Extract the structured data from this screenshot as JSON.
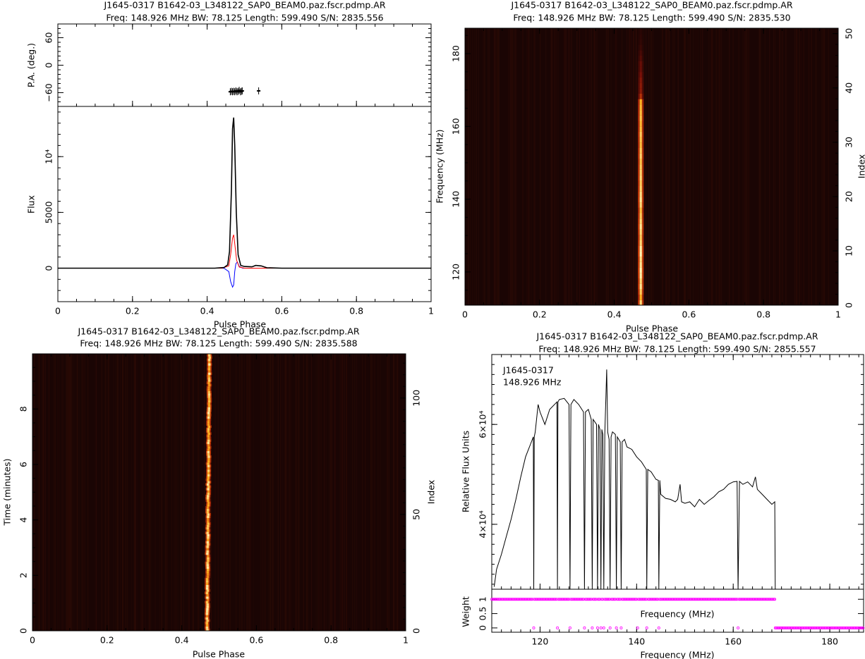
{
  "figure": {
    "background": "#ffffff",
    "axis_color": "#000000"
  },
  "panels": {
    "profile": {
      "title_line1": "J1645-0317 B1642-03_L348122_SAP0_BEAM0.paz.fscr.pdmp.AR",
      "title_line2": "Freq: 148.926 MHz BW: 78.125 Length: 599.490 S/N: 2835.556"
    },
    "freq_phase": {
      "title_line1": "J1645-0317 B1642-03_L348122_SAP0_BEAM0.paz.fscr.pdmp.AR",
      "title_line2": "Freq: 148.926 MHz BW: 78.125 Length: 599.490 S/N: 2835.530"
    },
    "time_phase": {
      "title_line1": "J1645-0317 B1642-03_L348122_SAP0_BEAM0.paz.fscr.pdmp.AR",
      "title_line2": "Freq: 148.926 MHz BW: 78.125 Length: 599.490 S/N: 2835.588"
    },
    "bandpass": {
      "title_line1": "J1645-0317 B1642-03_L348122_SAP0_BEAM0.paz.fscr.pdmp.AR",
      "title_line2": "Freq: 148.926 MHz BW: 78.125 Length: 599.490 S/N: 2855.557",
      "annotation_line1": "J1645-0317",
      "annotation_line2": "148.926 MHz"
    }
  },
  "chart_data": [
    {
      "id": "pa",
      "type": "scatter",
      "ylabel": "P.A. (deg.)",
      "xlim": [
        0,
        1
      ],
      "ylim": [
        -90,
        90
      ],
      "yticks": [
        -60,
        0,
        60
      ],
      "ytick_labels": [
        "−60",
        "0",
        "60"
      ],
      "color": "#000000",
      "points": [
        [
          0.462,
          -58
        ],
        [
          0.465,
          -57
        ],
        [
          0.468,
          -58
        ],
        [
          0.471,
          -57
        ],
        [
          0.474,
          -58
        ],
        [
          0.477,
          -56
        ],
        [
          0.48,
          -58
        ],
        [
          0.483,
          -57
        ],
        [
          0.486,
          -55
        ],
        [
          0.489,
          -58
        ],
        [
          0.492,
          -57
        ],
        [
          0.494,
          -56
        ],
        [
          0.538,
          -56
        ]
      ]
    },
    {
      "id": "flux",
      "type": "line",
      "xlabel": "Pulse Phase",
      "ylabel": "Flux",
      "xlim": [
        0,
        1
      ],
      "ylim": [
        -3000,
        14500
      ],
      "xticks": [
        0,
        0.2,
        0.4,
        0.6,
        0.8,
        1
      ],
      "xtick_labels": [
        "0",
        "0.2",
        "0.4",
        "0.6",
        "0.8",
        "1"
      ],
      "yticks": [
        0,
        5000,
        10000
      ],
      "ytick_labels": [
        "0",
        "5000",
        "10⁴"
      ],
      "series": [
        {
          "color": "#000000",
          "points": [
            [
              0,
              0
            ],
            [
              0.42,
              0
            ],
            [
              0.445,
              60
            ],
            [
              0.455,
              300
            ],
            [
              0.46,
              1500
            ],
            [
              0.465,
              7000
            ],
            [
              0.468,
              12500
            ],
            [
              0.471,
              13500
            ],
            [
              0.474,
              11000
            ],
            [
              0.478,
              5000
            ],
            [
              0.483,
              1200
            ],
            [
              0.49,
              250
            ],
            [
              0.5,
              150
            ],
            [
              0.52,
              120
            ],
            [
              0.53,
              250
            ],
            [
              0.545,
              200
            ],
            [
              0.56,
              40
            ],
            [
              0.6,
              0
            ],
            [
              1,
              0
            ]
          ]
        },
        {
          "color": "#ff0000",
          "points": [
            [
              0,
              0
            ],
            [
              0.44,
              0
            ],
            [
              0.458,
              200
            ],
            [
              0.463,
              1200
            ],
            [
              0.468,
              2700
            ],
            [
              0.471,
              3000
            ],
            [
              0.474,
              2200
            ],
            [
              0.479,
              700
            ],
            [
              0.486,
              100
            ],
            [
              0.5,
              0
            ],
            [
              1,
              0
            ]
          ]
        },
        {
          "color": "#0000ff",
          "points": [
            [
              0,
              0
            ],
            [
              0.445,
              0
            ],
            [
              0.458,
              -300
            ],
            [
              0.463,
              -1200
            ],
            [
              0.468,
              -1700
            ],
            [
              0.471,
              -1500
            ],
            [
              0.474,
              -300
            ],
            [
              0.477,
              400
            ],
            [
              0.481,
              550
            ],
            [
              0.486,
              150
            ],
            [
              0.495,
              0
            ],
            [
              1,
              0
            ]
          ]
        }
      ]
    },
    {
      "id": "freq_phase",
      "type": "heatmap",
      "xlabel": "Pulse Phase",
      "ylabel": "Frequency (MHz)",
      "ylabel_right": "Index",
      "xlim": [
        0,
        1
      ],
      "ylim": [
        110.86,
        186.99
      ],
      "ylim_right": [
        0,
        51
      ],
      "xticks": [
        0,
        0.2,
        0.4,
        0.6,
        0.8,
        1
      ],
      "xtick_labels": [
        "0",
        "0.2",
        "0.4",
        "0.6",
        "0.8",
        "1"
      ],
      "yticks": [
        120,
        140,
        160,
        180
      ],
      "ytick_labels": [
        "120",
        "140",
        "160",
        "180"
      ],
      "yticks_right": [
        0,
        10,
        20,
        30,
        40,
        50
      ],
      "ytick_labels_right": [
        "0",
        "10",
        "20",
        "30",
        "40",
        "50"
      ],
      "colormap": [
        "#1a0504",
        "#7a1008",
        "#d8480a",
        "#ffb020",
        "#fff2b0"
      ],
      "background_color": "#1a0504",
      "pulse_phase": 0.471,
      "pulse_width": 0.012,
      "channel_intensity": [
        0.9,
        0.75,
        0.85,
        0.95,
        0.9,
        0.98,
        1,
        0.95,
        0.92,
        1,
        0.98,
        0.9,
        0.85,
        0.9,
        0.95,
        0.9,
        0.85,
        0.8,
        0.9,
        0.95,
        0.92,
        0.88,
        0.85,
        0.9,
        0.88,
        0.85,
        0.82,
        0.88,
        0.85,
        0.8,
        0.82,
        0.85,
        0.8,
        0.78,
        0.82,
        0.8,
        0.78,
        0.75,
        0.4,
        0.3,
        0.3,
        0.28,
        0.25,
        0.2,
        0.2,
        0.15,
        0.12,
        0.08,
        0.06,
        0.05,
        0.04
      ]
    },
    {
      "id": "time_phase",
      "type": "heatmap",
      "xlabel": "Pulse Phase",
      "ylabel": "Time (minutes)",
      "ylabel_right": "Index",
      "xlim": [
        0,
        1
      ],
      "ylim": [
        0,
        9.99
      ],
      "ylim_right": [
        0,
        119
      ],
      "xticks": [
        0,
        0.2,
        0.4,
        0.6,
        0.8,
        1
      ],
      "xtick_labels": [
        "0",
        "0.2",
        "0.4",
        "0.6",
        "0.8",
        "1"
      ],
      "yticks": [
        0,
        2,
        4,
        6,
        8
      ],
      "ytick_labels": [
        "0",
        "2",
        "4",
        "6",
        "8"
      ],
      "yticks_right": [
        0,
        50,
        100
      ],
      "ytick_labels_right": [
        "0",
        "50",
        "100"
      ],
      "colormap": [
        "#1a0504",
        "#7a1008",
        "#d8480a",
        "#ffb020",
        "#fff2b0"
      ],
      "background_color": "#1a0504",
      "pulse_phase_start": 0.468,
      "pulse_phase_end": 0.474,
      "pulse_width": 0.013,
      "rows": 120
    },
    {
      "id": "bandpass",
      "type": "line",
      "ylabel": "Relative Flux Units",
      "xlim": [
        110,
        187
      ],
      "ylim": [
        27000,
        74000
      ],
      "yticks": [
        40000,
        60000
      ],
      "ytick_labels": [
        "4×10⁴",
        "6×10⁴"
      ],
      "color": "#000000",
      "points": [
        [
          110.5,
          27500
        ],
        [
          111,
          31000
        ],
        [
          112,
          34000
        ],
        [
          113,
          37500
        ],
        [
          114,
          41000
        ],
        [
          115,
          45000
        ],
        [
          116,
          49500
        ],
        [
          117,
          53500
        ],
        [
          118,
          56000
        ],
        [
          118.6,
          57500
        ],
        [
          118.7,
          27000
        ],
        [
          118.8,
          57500
        ],
        [
          119,
          58500
        ],
        [
          119.6,
          64000
        ],
        [
          120,
          62500
        ],
        [
          121,
          60000
        ],
        [
          122,
          63000
        ],
        [
          123.5,
          64500
        ],
        [
          123.6,
          27000
        ],
        [
          123.7,
          64500
        ],
        [
          124,
          65000
        ],
        [
          125,
          65200
        ],
        [
          126,
          64000
        ],
        [
          126.2,
          27000
        ],
        [
          126.4,
          64000
        ],
        [
          127,
          65000
        ],
        [
          128,
          64000
        ],
        [
          129,
          62500
        ],
        [
          129.2,
          27000
        ],
        [
          129.4,
          62500
        ],
        [
          130,
          63000
        ],
        [
          130.6,
          61000
        ],
        [
          130.8,
          27000
        ],
        [
          131,
          61000
        ],
        [
          131.7,
          60000
        ],
        [
          131.9,
          27000
        ],
        [
          132.1,
          60000
        ],
        [
          132.4,
          59000
        ],
        [
          132.6,
          27000
        ],
        [
          132.8,
          59000
        ],
        [
          133,
          58000
        ],
        [
          133.2,
          27000
        ],
        [
          133.4,
          58000
        ],
        [
          133.8,
          71000
        ],
        [
          134,
          58500
        ],
        [
          134.3,
          57000
        ],
        [
          134.5,
          27000
        ],
        [
          134.7,
          57500
        ],
        [
          135,
          58500
        ],
        [
          135.6,
          58000
        ],
        [
          135.8,
          27000
        ],
        [
          136,
          57500
        ],
        [
          136.6,
          56500
        ],
        [
          136.8,
          27000
        ],
        [
          137,
          56500
        ],
        [
          137.5,
          57000
        ],
        [
          138,
          55500
        ],
        [
          139,
          55000
        ],
        [
          140,
          53500
        ],
        [
          141,
          52500
        ],
        [
          142,
          51000
        ],
        [
          142.1,
          27000
        ],
        [
          142.3,
          51000
        ],
        [
          143,
          50500
        ],
        [
          144,
          49000
        ],
        [
          144.5,
          48800
        ],
        [
          144.6,
          27000
        ],
        [
          144.8,
          48800
        ],
        [
          145,
          46000
        ],
        [
          146,
          45200
        ],
        [
          147,
          45000
        ],
        [
          148,
          44500
        ],
        [
          148.5,
          45000
        ],
        [
          149,
          48000
        ],
        [
          149.3,
          44500
        ],
        [
          150,
          44200
        ],
        [
          151,
          44500
        ],
        [
          152,
          43500
        ],
        [
          153,
          45000
        ],
        [
          154,
          44000
        ],
        [
          155,
          44800
        ],
        [
          156,
          45500
        ],
        [
          157,
          46500
        ],
        [
          158,
          47000
        ],
        [
          159,
          48000
        ],
        [
          160,
          48500
        ],
        [
          160.8,
          48600
        ],
        [
          161,
          27000
        ],
        [
          161.3,
          48600
        ],
        [
          162,
          48000
        ],
        [
          163,
          48500
        ],
        [
          164,
          47500
        ],
        [
          164.6,
          49500
        ],
        [
          165,
          47000
        ],
        [
          166,
          46000
        ],
        [
          167,
          45000
        ],
        [
          168,
          44000
        ],
        [
          168.6,
          44500
        ],
        [
          168.7,
          27000
        ]
      ]
    },
    {
      "id": "weights",
      "type": "scatter",
      "xlabel": "Frequency (MHz)",
      "ylabel": "Weight",
      "xlim": [
        110,
        187
      ],
      "ylim": [
        -0.15,
        1.35
      ],
      "xticks": [
        120,
        140,
        160,
        180
      ],
      "xtick_labels": [
        "120",
        "140",
        "160",
        "180"
      ],
      "yticks": [
        0,
        0.5,
        1
      ],
      "ytick_labels": [
        "0",
        "0.5",
        "1"
      ],
      "color": "#ff00ff",
      "weight_one_range": [
        110,
        168.6
      ],
      "weight_zero_freqs": [
        118.7,
        123.6,
        126.2,
        129.2,
        130.8,
        131.9,
        132.6,
        133.2,
        134.5,
        135.8,
        136.8,
        140.2,
        142.1,
        144.6,
        161.0
      ],
      "weight_zero_range": [
        168.7,
        187
      ]
    }
  ]
}
